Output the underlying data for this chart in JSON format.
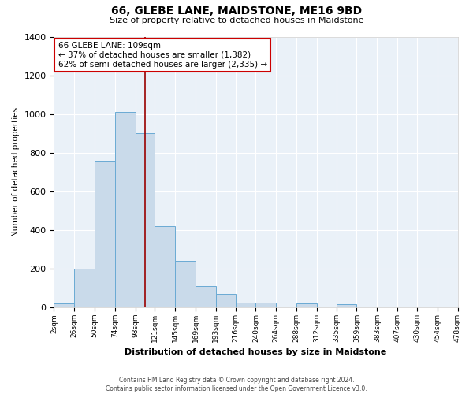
{
  "title": "66, GLEBE LANE, MAIDSTONE, ME16 9BD",
  "subtitle": "Size of property relative to detached houses in Maidstone",
  "xlabel": "Distribution of detached houses by size in Maidstone",
  "ylabel": "Number of detached properties",
  "bar_color": "#c9daea",
  "bar_edge_color": "#6aaad4",
  "background_color": "#eaf1f8",
  "grid_color": "#ffffff",
  "annotation_box_color": "#cc0000",
  "vline_color": "#990000",
  "bin_edges": [
    2,
    26,
    50,
    74,
    98,
    121,
    145,
    169,
    193,
    216,
    240,
    264,
    288,
    312,
    335,
    359,
    383,
    407,
    430,
    454,
    478
  ],
  "bar_heights": [
    20,
    200,
    760,
    1010,
    900,
    420,
    240,
    110,
    70,
    25,
    25,
    0,
    20,
    0,
    15,
    0,
    0,
    0,
    0,
    0
  ],
  "property_size": 109,
  "annotation_line1": "66 GLEBE LANE: 109sqm",
  "annotation_line2": "← 37% of detached houses are smaller (1,382)",
  "annotation_line3": "62% of semi-detached houses are larger (2,335) →",
  "tick_labels": [
    "2sqm",
    "26sqm",
    "50sqm",
    "74sqm",
    "98sqm",
    "121sqm",
    "145sqm",
    "169sqm",
    "193sqm",
    "216sqm",
    "240sqm",
    "264sqm",
    "288sqm",
    "312sqm",
    "335sqm",
    "359sqm",
    "383sqm",
    "407sqm",
    "430sqm",
    "454sqm",
    "478sqm"
  ],
  "ylim": [
    0,
    1400
  ],
  "yticks": [
    0,
    200,
    400,
    600,
    800,
    1000,
    1200,
    1400
  ],
  "footer_line1": "Contains HM Land Registry data © Crown copyright and database right 2024.",
  "footer_line2": "Contains public sector information licensed under the Open Government Licence v3.0."
}
